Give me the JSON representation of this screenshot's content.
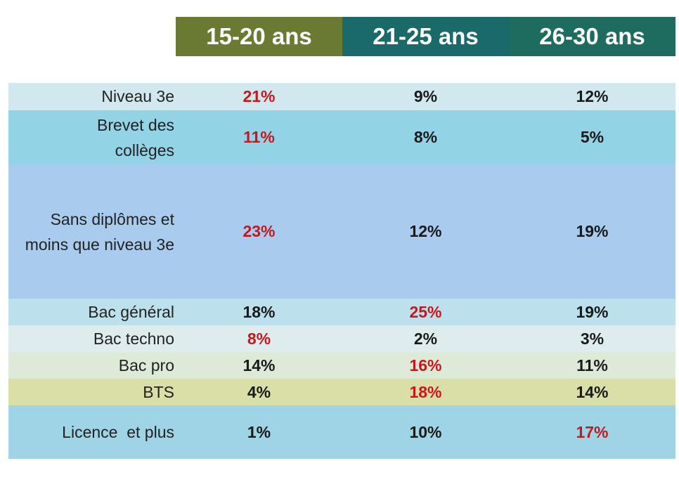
{
  "chart_data": {
    "type": "table",
    "columns": [
      "15-20 ans",
      "21-25 ans",
      "26-30 ans"
    ],
    "rows": [
      {
        "label": "Niveau 3e",
        "values": [
          "21%",
          "9%",
          "12%"
        ],
        "highlight": [
          true,
          false,
          false
        ]
      },
      {
        "label": "Brevet des collèges",
        "values": [
          "11%",
          "8%",
          "5%"
        ],
        "highlight": [
          true,
          false,
          false
        ]
      },
      {
        "label": "Sans diplômes et moins que niveau 3e",
        "values": [
          "23%",
          "12%",
          "19%"
        ],
        "highlight": [
          true,
          false,
          false
        ]
      },
      {
        "label": "Bac général",
        "values": [
          "18%",
          "25%",
          "19%"
        ],
        "highlight": [
          false,
          true,
          false
        ]
      },
      {
        "label": "Bac techno",
        "values": [
          "8%",
          "2%",
          "3%"
        ],
        "highlight": [
          true,
          false,
          false
        ]
      },
      {
        "label": "Bac pro",
        "values": [
          "14%",
          "16%",
          "11%"
        ],
        "highlight": [
          false,
          true,
          false
        ]
      },
      {
        "label": "BTS",
        "values": [
          "4%",
          "18%",
          "14%"
        ],
        "highlight": [
          false,
          true,
          false
        ]
      },
      {
        "label": "Licence  et plus",
        "values": [
          "1%",
          "10%",
          "17%"
        ],
        "highlight": [
          false,
          false,
          true
        ]
      }
    ]
  },
  "colors": {
    "header_15_20": "#6b7a32",
    "header_21_25": "#1b6a6a",
    "header_26_30": "#1e6b5f",
    "highlight_text": "#c8161d"
  }
}
